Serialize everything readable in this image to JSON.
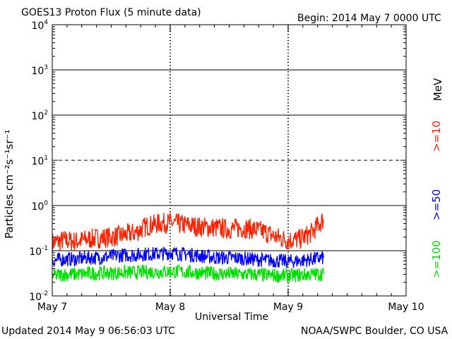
{
  "header": {
    "title": "GOES13 Proton Flux (5 minute data)",
    "begin": "Begin: 2014 May 7 0000 UTC"
  },
  "footer": {
    "updated": "Updated 2014 May  9 06:56:03 UTC",
    "credit": "NOAA/SWPC Boulder, CO USA"
  },
  "chart_data": {
    "type": "line",
    "title": "GOES13 Proton Flux (5 minute data)",
    "xlabel": "Universal Time",
    "ylabel": "Particles cm⁻²s⁻¹sr⁻¹",
    "y_scale": "log",
    "ylim": [
      0.01,
      10000
    ],
    "xlim": [
      0,
      3
    ],
    "x_unit": "days since 2014 May 7 0000 UTC",
    "x_ticks": [
      {
        "value": 0,
        "label": "May 7"
      },
      {
        "value": 1,
        "label": "May 8"
      },
      {
        "value": 2,
        "label": "May 9"
      },
      {
        "value": 3,
        "label": "May 10"
      }
    ],
    "y_ticks": [
      {
        "exp": "-2",
        "value": 0.01
      },
      {
        "exp": "-1",
        "value": 0.1
      },
      {
        "exp": "0",
        "value": 1
      },
      {
        "exp": "1",
        "value": 10
      },
      {
        "exp": "2",
        "value": 100
      },
      {
        "exp": "3",
        "value": 1000
      },
      {
        "exp": "4",
        "value": 10000
      }
    ],
    "thresholds": [
      {
        "value": 10,
        "style": "dashed"
      }
    ],
    "legend_unit": "MeV",
    "series": [
      {
        "name": ">=10",
        "color": "#ff2000",
        "x": [
          0,
          0.1,
          0.2,
          0.3,
          0.4,
          0.5,
          0.6,
          0.7,
          0.8,
          0.9,
          1.0,
          1.1,
          1.2,
          1.3,
          1.4,
          1.5,
          1.6,
          1.7,
          1.8,
          1.9,
          2.0,
          2.1,
          2.2,
          2.3
        ],
        "values": [
          0.15,
          0.17,
          0.16,
          0.18,
          0.19,
          0.2,
          0.22,
          0.25,
          0.35,
          0.4,
          0.42,
          0.38,
          0.35,
          0.33,
          0.32,
          0.3,
          0.32,
          0.3,
          0.26,
          0.2,
          0.17,
          0.18,
          0.25,
          0.5
        ]
      },
      {
        "name": ">=50",
        "color": "#0000ff",
        "x": [
          0,
          0.1,
          0.2,
          0.3,
          0.4,
          0.5,
          0.6,
          0.7,
          0.8,
          0.9,
          1.0,
          1.1,
          1.2,
          1.3,
          1.4,
          1.5,
          1.6,
          1.7,
          1.8,
          1.9,
          2.0,
          2.1,
          2.2,
          2.3
        ],
        "values": [
          0.06,
          0.065,
          0.065,
          0.07,
          0.07,
          0.075,
          0.08,
          0.08,
          0.085,
          0.085,
          0.09,
          0.085,
          0.08,
          0.075,
          0.07,
          0.07,
          0.068,
          0.065,
          0.062,
          0.06,
          0.058,
          0.06,
          0.065,
          0.07
        ]
      },
      {
        "name": ">=100",
        "color": "#00e000",
        "x": [
          0,
          0.1,
          0.2,
          0.3,
          0.4,
          0.5,
          0.6,
          0.7,
          0.8,
          0.9,
          1.0,
          1.1,
          1.2,
          1.3,
          1.4,
          1.5,
          1.6,
          1.7,
          1.8,
          1.9,
          2.0,
          2.1,
          2.2,
          2.3
        ],
        "values": [
          0.028,
          0.03,
          0.03,
          0.031,
          0.032,
          0.032,
          0.033,
          0.033,
          0.034,
          0.034,
          0.035,
          0.034,
          0.033,
          0.032,
          0.031,
          0.031,
          0.03,
          0.03,
          0.029,
          0.028,
          0.028,
          0.029,
          0.03,
          0.031
        ]
      }
    ]
  }
}
